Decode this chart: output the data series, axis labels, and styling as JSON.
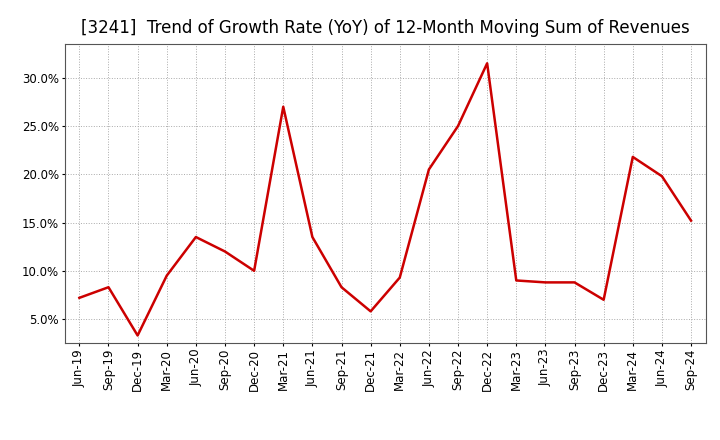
{
  "title": "[3241]  Trend of Growth Rate (YoY) of 12-Month Moving Sum of Revenues",
  "labels": [
    "Jun-19",
    "Sep-19",
    "Dec-19",
    "Mar-20",
    "Jun-20",
    "Sep-20",
    "Dec-20",
    "Mar-21",
    "Jun-21",
    "Sep-21",
    "Dec-21",
    "Mar-22",
    "Jun-22",
    "Sep-22",
    "Dec-22",
    "Mar-23",
    "Jun-23",
    "Sep-23",
    "Dec-23",
    "Mar-24",
    "Jun-24",
    "Sep-24"
  ],
  "values": [
    7.2,
    8.3,
    3.3,
    9.5,
    13.5,
    12.0,
    10.0,
    27.0,
    13.5,
    8.3,
    5.8,
    9.3,
    20.5,
    25.0,
    31.5,
    9.0,
    8.8,
    8.8,
    7.0,
    21.8,
    19.8,
    15.2
  ],
  "line_color": "#cc0000",
  "bg_color": "#ffffff",
  "plot_bg_color": "#ffffff",
  "grid_color": "#aaaaaa",
  "ylim_min": 2.5,
  "ylim_max": 33.5,
  "yticks": [
    5.0,
    10.0,
    15.0,
    20.0,
    25.0,
    30.0
  ],
  "title_fontsize": 12,
  "tick_fontsize": 8.5,
  "line_width": 1.8
}
